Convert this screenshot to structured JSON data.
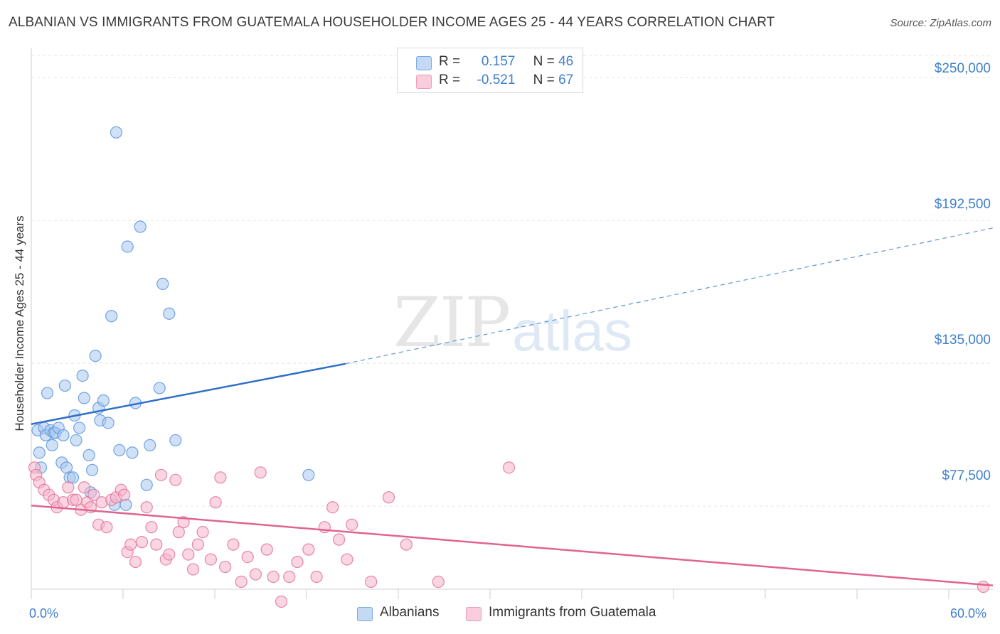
{
  "title": "ALBANIAN VS IMMIGRANTS FROM GUATEMALA HOUSEHOLDER INCOME AGES 25 - 44 YEARS CORRELATION CHART",
  "source": "Source: ZipAtlas.com",
  "watermark": {
    "zip": "ZIP",
    "atlas": "atlas"
  },
  "legend_top": [
    {
      "r_label": "R =",
      "r_value": "0.157",
      "n_label": "N =",
      "n_value": "46",
      "color": "#a9c8f0"
    },
    {
      "r_label": "R =",
      "r_value": "-0.521",
      "n_label": "N =",
      "n_value": "67",
      "color": "#f6b5ca"
    }
  ],
  "legend_bottom": {
    "albanians": "Albanians",
    "guatemala": "Immigrants from Guatemala"
  },
  "x_axis": {
    "min_label": "0.0%",
    "max_label": "60.0%"
  },
  "y_axis": {
    "label": "Householder Income Ages 25 - 44 years",
    "ticks": [
      "$250,000",
      "$192,500",
      "$135,000",
      "$77,500"
    ]
  },
  "chart_data": {
    "type": "scatter",
    "title": "ALBANIAN VS IMMIGRANTS FROM GUATEMALA HOUSEHOLDER INCOME AGES 25 - 44 YEARS CORRELATION CHART",
    "xlabel": "",
    "ylabel": "Householder Income Ages 25 - 44 years",
    "xlim": [
      0,
      60
    ],
    "ylim": [
      44000,
      259000
    ],
    "yticks": [
      77500,
      135000,
      192500,
      250000
    ],
    "series": [
      {
        "name": "Albanians",
        "color": "#5b95db",
        "fill": "#a9c8f0",
        "trend": {
          "x0": 0,
          "y0": 110500,
          "x1": 19.6,
          "y1": 134800,
          "dash_to_x": 60,
          "dash_to_y": 189500
        },
        "points": [
          [
            0.4,
            108
          ],
          [
            0.5,
            99
          ],
          [
            0.6,
            93
          ],
          [
            0.8,
            109
          ],
          [
            0.9,
            106
          ],
          [
            1.0,
            123
          ],
          [
            1.2,
            108
          ],
          [
            1.3,
            102
          ],
          [
            1.4,
            107
          ],
          [
            1.5,
            107
          ],
          [
            1.7,
            109
          ],
          [
            1.9,
            95
          ],
          [
            2.0,
            106
          ],
          [
            2.1,
            126
          ],
          [
            2.2,
            93
          ],
          [
            2.4,
            89
          ],
          [
            2.6,
            89
          ],
          [
            2.7,
            114
          ],
          [
            2.8,
            104
          ],
          [
            3.0,
            109
          ],
          [
            3.2,
            130
          ],
          [
            3.3,
            121
          ],
          [
            3.6,
            98
          ],
          [
            3.7,
            83
          ],
          [
            3.8,
            92
          ],
          [
            4.0,
            138
          ],
          [
            4.2,
            117
          ],
          [
            4.3,
            112
          ],
          [
            4.5,
            120
          ],
          [
            4.8,
            111
          ],
          [
            5.0,
            154
          ],
          [
            5.2,
            78
          ],
          [
            5.3,
            228
          ],
          [
            5.5,
            100
          ],
          [
            5.9,
            78
          ],
          [
            6.0,
            182
          ],
          [
            6.3,
            99
          ],
          [
            6.5,
            119
          ],
          [
            6.8,
            190
          ],
          [
            7.2,
            86
          ],
          [
            7.4,
            102
          ],
          [
            8.0,
            125
          ],
          [
            8.2,
            167
          ],
          [
            8.6,
            155
          ],
          [
            9.0,
            104
          ],
          [
            17.3,
            90
          ]
        ]
      },
      {
        "name": "Immigrants from Guatemala",
        "color": "#e3739a",
        "fill": "#f6b5ca",
        "trend": {
          "x0": 0,
          "y0": 77700,
          "x1": 60,
          "y1": 45500
        },
        "points": [
          [
            0.2,
            93
          ],
          [
            0.3,
            90
          ],
          [
            0.5,
            87
          ],
          [
            0.8,
            84
          ],
          [
            1.1,
            82
          ],
          [
            1.4,
            80
          ],
          [
            1.6,
            77
          ],
          [
            2.0,
            79
          ],
          [
            2.3,
            85
          ],
          [
            2.6,
            80
          ],
          [
            2.8,
            80
          ],
          [
            3.1,
            76
          ],
          [
            3.3,
            85
          ],
          [
            3.5,
            79
          ],
          [
            3.7,
            77
          ],
          [
            3.9,
            82
          ],
          [
            4.2,
            70
          ],
          [
            4.4,
            79
          ],
          [
            4.7,
            69
          ],
          [
            5.0,
            80
          ],
          [
            5.3,
            81
          ],
          [
            5.6,
            84
          ],
          [
            5.8,
            82
          ],
          [
            6.0,
            59
          ],
          [
            6.2,
            62
          ],
          [
            6.5,
            55
          ],
          [
            6.9,
            63
          ],
          [
            7.2,
            77
          ],
          [
            7.5,
            69
          ],
          [
            7.8,
            62
          ],
          [
            8.1,
            90
          ],
          [
            8.4,
            56
          ],
          [
            8.6,
            58
          ],
          [
            9.0,
            88
          ],
          [
            9.2,
            67
          ],
          [
            9.5,
            71
          ],
          [
            9.8,
            58
          ],
          [
            10.1,
            52
          ],
          [
            10.4,
            62
          ],
          [
            10.7,
            67
          ],
          [
            11.2,
            56
          ],
          [
            11.5,
            79
          ],
          [
            11.8,
            89
          ],
          [
            12.1,
            53
          ],
          [
            12.6,
            62
          ],
          [
            13.1,
            47
          ],
          [
            13.5,
            57
          ],
          [
            14.0,
            50
          ],
          [
            14.3,
            91
          ],
          [
            14.7,
            60
          ],
          [
            15.1,
            49
          ],
          [
            15.6,
            39
          ],
          [
            16.1,
            49
          ],
          [
            16.6,
            55
          ],
          [
            17.3,
            60
          ],
          [
            17.8,
            49
          ],
          [
            18.3,
            69
          ],
          [
            18.8,
            77
          ],
          [
            19.2,
            64
          ],
          [
            19.7,
            56
          ],
          [
            20.0,
            70
          ],
          [
            21.2,
            47
          ],
          [
            22.3,
            81
          ],
          [
            23.4,
            62
          ],
          [
            25.4,
            47
          ],
          [
            29.8,
            93
          ],
          [
            59.4,
            45
          ]
        ]
      }
    ]
  }
}
